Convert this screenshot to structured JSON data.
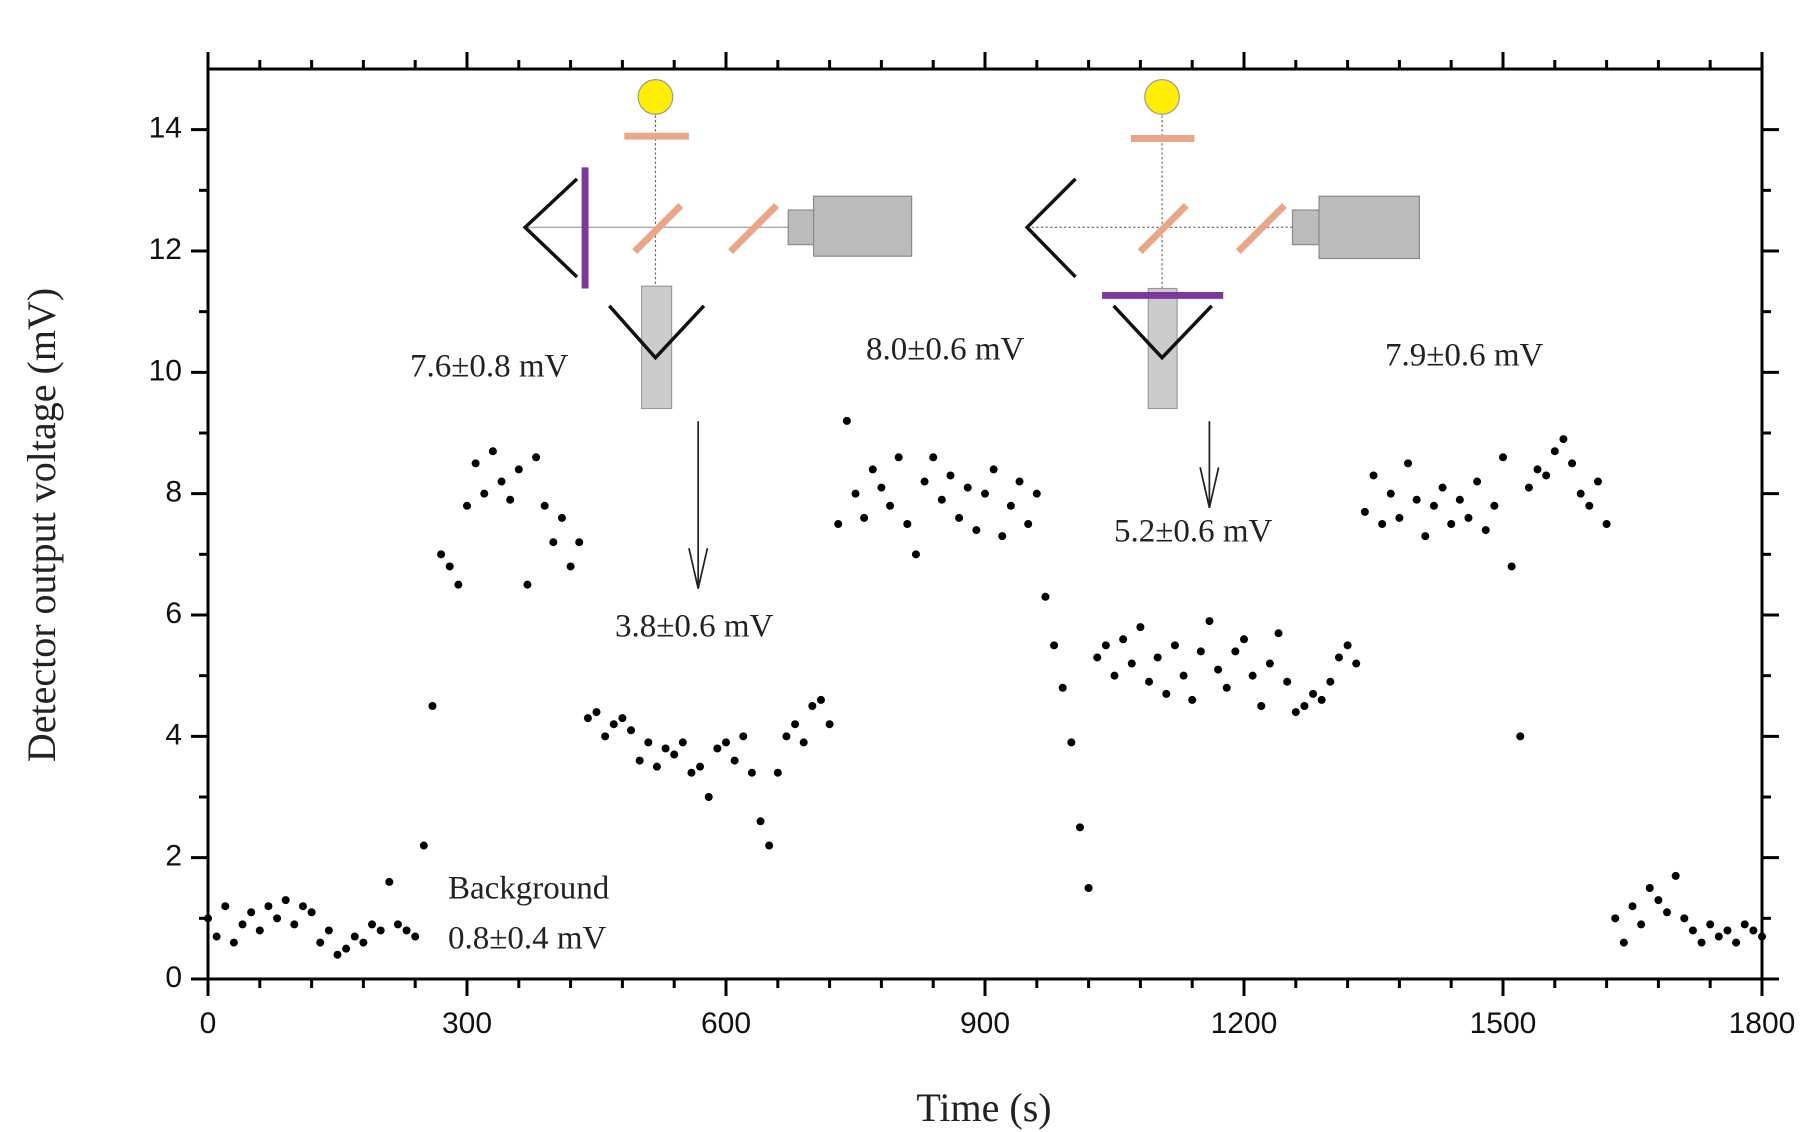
{
  "chart_data": {
    "type": "scatter",
    "xlabel": "Time (s)",
    "ylabel": "Detector output voltage (mV)",
    "color": "#000000",
    "xlim": [
      0,
      1800
    ],
    "xticks": [
      0,
      300,
      600,
      900,
      1200,
      1500,
      1800
    ],
    "ylim": [
      0,
      15
    ],
    "yticks": [
      0,
      2,
      4,
      6,
      8,
      10,
      12,
      14
    ],
    "annotations": [
      "7.6±0.8 mV",
      "3.8±0.6 mV",
      "8.0±0.6 mV",
      "5.2±0.6 mV",
      "7.9±0.6 mV",
      "Background",
      "0.8±0.4 mV"
    ],
    "x": [
      0,
      10,
      20,
      30,
      40,
      50,
      60,
      70,
      80,
      90,
      100,
      110,
      120,
      130,
      140,
      150,
      160,
      170,
      180,
      190,
      200,
      210,
      220,
      230,
      240,
      250,
      260,
      270,
      280,
      290,
      300,
      310,
      320,
      330,
      340,
      350,
      360,
      370,
      380,
      390,
      400,
      410,
      420,
      430,
      440,
      450,
      460,
      470,
      480,
      490,
      500,
      510,
      520,
      530,
      540,
      550,
      560,
      570,
      580,
      590,
      600,
      610,
      620,
      630,
      640,
      650,
      660,
      670,
      680,
      690,
      700,
      710,
      720,
      730,
      740,
      750,
      760,
      770,
      780,
      790,
      800,
      810,
      820,
      830,
      840,
      850,
      860,
      870,
      880,
      890,
      900,
      910,
      920,
      930,
      940,
      950,
      960,
      970,
      980,
      990,
      1000,
      1010,
      1020,
      1030,
      1040,
      1050,
      1060,
      1070,
      1080,
      1090,
      1100,
      1110,
      1120,
      1130,
      1140,
      1150,
      1160,
      1170,
      1180,
      1190,
      1200,
      1210,
      1220,
      1230,
      1240,
      1250,
      1260,
      1270,
      1280,
      1290,
      1300,
      1310,
      1320,
      1330,
      1340,
      1350,
      1360,
      1370,
      1380,
      1390,
      1400,
      1410,
      1420,
      1430,
      1440,
      1450,
      1460,
      1470,
      1480,
      1490,
      1500,
      1510,
      1520,
      1530,
      1540,
      1550,
      1560,
      1570,
      1580,
      1590,
      1600,
      1610,
      1620,
      1630,
      1640,
      1650,
      1660,
      1670,
      1680,
      1690,
      1700,
      1710,
      1720,
      1730,
      1740,
      1750,
      1760,
      1770,
      1780,
      1790,
      1800
    ],
    "values": [
      1.0,
      0.7,
      1.2,
      0.6,
      0.9,
      1.1,
      0.8,
      1.2,
      1.0,
      1.3,
      0.9,
      1.2,
      1.1,
      0.6,
      0.8,
      0.4,
      0.5,
      0.7,
      0.6,
      0.9,
      0.8,
      1.6,
      0.9,
      0.8,
      0.7,
      2.2,
      4.5,
      7.0,
      6.8,
      6.5,
      7.8,
      8.5,
      8.0,
      8.7,
      8.2,
      7.9,
      8.4,
      6.5,
      8.6,
      7.8,
      7.2,
      7.6,
      6.8,
      7.2,
      4.3,
      4.4,
      4.0,
      4.2,
      4.3,
      4.1,
      3.6,
      3.9,
      3.5,
      3.8,
      3.7,
      3.9,
      3.4,
      3.5,
      3.0,
      3.8,
      3.9,
      3.6,
      4.0,
      3.4,
      2.6,
      2.2,
      3.4,
      4.0,
      4.2,
      3.9,
      4.5,
      4.6,
      4.2,
      7.5,
      9.2,
      8.0,
      7.6,
      8.4,
      8.1,
      7.8,
      8.6,
      7.5,
      7.0,
      8.2,
      8.6,
      7.9,
      8.3,
      7.6,
      8.1,
      7.4,
      8.0,
      8.4,
      7.3,
      7.8,
      8.2,
      7.5,
      8.0,
      6.3,
      5.5,
      4.8,
      3.9,
      2.5,
      1.5,
      5.3,
      5.5,
      5.0,
      5.6,
      5.2,
      5.8,
      4.9,
      5.3,
      4.7,
      5.5,
      5.0,
      4.6,
      5.4,
      5.9,
      5.1,
      4.8,
      5.4,
      5.6,
      5.0,
      4.5,
      5.2,
      5.7,
      4.9,
      4.4,
      4.5,
      4.7,
      4.6,
      4.9,
      5.3,
      5.5,
      5.2,
      7.7,
      8.3,
      7.5,
      8.0,
      7.6,
      8.5,
      7.9,
      7.3,
      7.8,
      8.1,
      7.5,
      7.9,
      7.6,
      8.2,
      7.4,
      7.8,
      8.6,
      6.8,
      4.0,
      8.1,
      8.4,
      8.3,
      8.7,
      8.9,
      8.5,
      8.0,
      7.8,
      8.2,
      7.5,
      1.0,
      0.6,
      1.2,
      0.9,
      1.5,
      1.3,
      1.1,
      1.7,
      1.0,
      0.8,
      0.6,
      0.9,
      0.7,
      0.8,
      0.6,
      0.9,
      0.8,
      0.7
    ]
  }
}
